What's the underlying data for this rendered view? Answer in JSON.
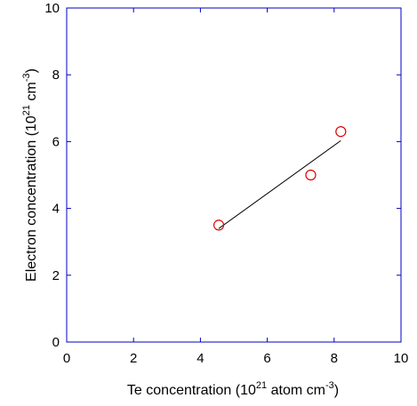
{
  "chart_data": {
    "type": "scatter",
    "title": "",
    "xlabel": {
      "prefix": "Te concentration (10",
      "sup1": "21",
      "middle": " atom cm",
      "sup2": "-3",
      "suffix": ")"
    },
    "ylabel": {
      "prefix": "Electron concentration (10",
      "sup1": "21",
      "middle": " cm",
      "sup2": "-3",
      "suffix": ")"
    },
    "xlim": [
      0,
      10
    ],
    "ylim": [
      0,
      10
    ],
    "xticks": [
      0,
      2,
      4,
      6,
      8,
      10
    ],
    "yticks": [
      0,
      2,
      4,
      6,
      8,
      10
    ],
    "grid": false,
    "legend": "none",
    "points": {
      "x": [
        4.55,
        7.3,
        8.2
      ],
      "y": [
        3.5,
        5.0,
        6.3
      ],
      "marker": "open-circle",
      "color": "#e00000"
    },
    "fit_line": {
      "x": [
        4.55,
        8.2
      ],
      "y": [
        3.4,
        6.03
      ],
      "color": "#000000"
    },
    "axis_color": "#0000c0"
  }
}
